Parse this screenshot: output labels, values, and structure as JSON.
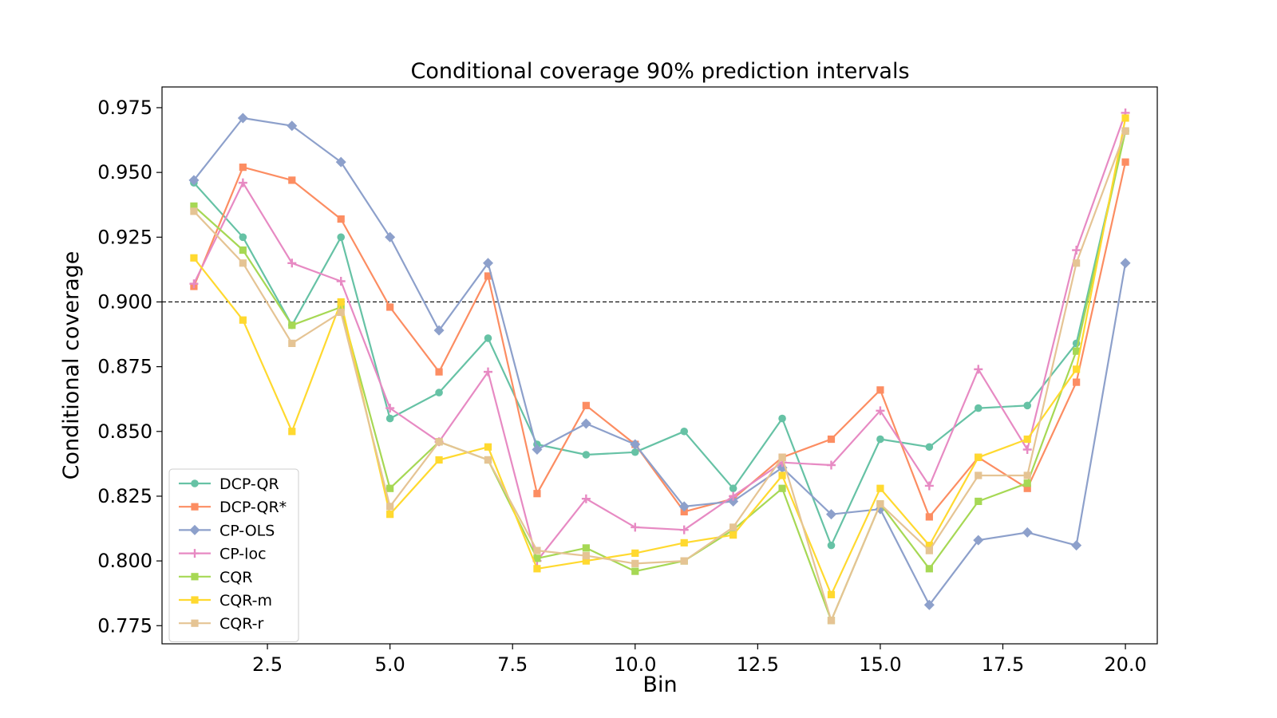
{
  "chart_data": {
    "type": "line",
    "title": "Conditional coverage 90% prediction intervals",
    "xlabel": "Bin",
    "ylabel": "Conditional coverage",
    "xlim": [
      0.35,
      20.65
    ],
    "ylim": [
      0.768,
      0.983
    ],
    "xticks": [
      2.5,
      5.0,
      7.5,
      10.0,
      12.5,
      15.0,
      17.5,
      20.0
    ],
    "xtick_labels": [
      "2.5",
      "5.0",
      "7.5",
      "10.0",
      "12.5",
      "15.0",
      "17.5",
      "20.0"
    ],
    "yticks": [
      0.775,
      0.8,
      0.825,
      0.85,
      0.875,
      0.9,
      0.925,
      0.95,
      0.975
    ],
    "ytick_labels": [
      "0.775",
      "0.800",
      "0.825",
      "0.850",
      "0.875",
      "0.900",
      "0.925",
      "0.950",
      "0.975"
    ],
    "reference_line": 0.9,
    "grid": false,
    "legend_position": "lower-left",
    "x": [
      1,
      2,
      3,
      4,
      5,
      6,
      7,
      8,
      9,
      10,
      11,
      12,
      13,
      14,
      15,
      16,
      17,
      18,
      19,
      20
    ],
    "series": [
      {
        "name": "DCP-QR",
        "color": "#66c2a5",
        "marker": "circle",
        "values": [
          0.946,
          0.925,
          0.891,
          0.925,
          0.855,
          0.865,
          0.886,
          0.845,
          0.841,
          0.842,
          0.85,
          0.828,
          0.855,
          0.806,
          0.847,
          0.844,
          0.859,
          0.86,
          0.884,
          0.966
        ]
      },
      {
        "name": "DCP-QR*",
        "color": "#fc8d62",
        "marker": "square",
        "values": [
          0.906,
          0.952,
          0.947,
          0.932,
          0.898,
          0.873,
          0.91,
          0.826,
          0.86,
          0.845,
          0.819,
          0.824,
          0.84,
          0.847,
          0.866,
          0.817,
          0.84,
          0.828,
          0.869,
          0.954
        ]
      },
      {
        "name": "CP-OLS",
        "color": "#8da0cb",
        "marker": "diamond",
        "values": [
          0.947,
          0.971,
          0.968,
          0.954,
          0.925,
          0.889,
          0.915,
          0.843,
          0.853,
          0.845,
          0.821,
          0.823,
          0.836,
          0.818,
          0.82,
          0.783,
          0.808,
          0.811,
          0.806,
          0.915
        ]
      },
      {
        "name": "CP-loc",
        "color": "#e78ac3",
        "marker": "plus",
        "values": [
          0.907,
          0.946,
          0.915,
          0.908,
          0.859,
          0.846,
          0.873,
          0.8,
          0.824,
          0.813,
          0.812,
          0.825,
          0.838,
          0.837,
          0.858,
          0.829,
          0.874,
          0.843,
          0.92,
          0.973
        ]
      },
      {
        "name": "CQR",
        "color": "#a6d854",
        "marker": "square",
        "values": [
          0.937,
          0.92,
          0.891,
          0.898,
          0.828,
          0.846,
          0.839,
          0.801,
          0.805,
          0.796,
          0.8,
          0.812,
          0.828,
          0.777,
          0.822,
          0.797,
          0.823,
          0.83,
          0.881,
          0.966
        ]
      },
      {
        "name": "CQR-m",
        "color": "#ffd92f",
        "marker": "square",
        "values": [
          0.917,
          0.893,
          0.85,
          0.9,
          0.818,
          0.839,
          0.844,
          0.797,
          0.8,
          0.803,
          0.807,
          0.81,
          0.833,
          0.787,
          0.828,
          0.806,
          0.84,
          0.847,
          0.874,
          0.971
        ]
      },
      {
        "name": "CQR-r",
        "color": "#e5c494",
        "marker": "square",
        "values": [
          0.935,
          0.915,
          0.884,
          0.896,
          0.821,
          0.846,
          0.839,
          0.804,
          0.802,
          0.799,
          0.8,
          0.813,
          0.84,
          0.777,
          0.822,
          0.804,
          0.833,
          0.833,
          0.915,
          0.966
        ]
      }
    ]
  }
}
